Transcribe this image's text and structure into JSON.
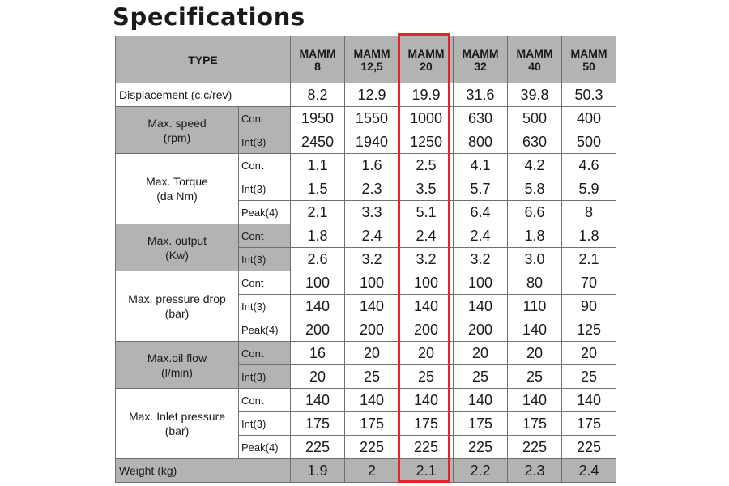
{
  "title": "Specifications",
  "highlight_color": "#e3242b",
  "header": {
    "type_label": "TYPE",
    "models": [
      {
        "line1": "MAMM",
        "line2": "8"
      },
      {
        "line1": "MAMM",
        "line2": "12,5"
      },
      {
        "line1": "MAMM",
        "line2": "20"
      },
      {
        "line1": "MAMM",
        "line2": "32"
      },
      {
        "line1": "MAMM",
        "line2": "40"
      },
      {
        "line1": "MAMM",
        "line2": "50"
      }
    ]
  },
  "highlighted_model": "MAMM 20",
  "rows": {
    "displacement": {
      "label": "Displacement (c.c/rev)",
      "values": [
        "8.2",
        "12.9",
        "19.9",
        "31.6",
        "39.8",
        "50.3"
      ]
    },
    "speed": {
      "label_line1": "Max. speed",
      "label_line2": "(rpm)",
      "cont": {
        "label": "Cont",
        "values": [
          "1950",
          "1550",
          "1000",
          "630",
          "500",
          "400"
        ]
      },
      "int": {
        "label": "Int(3)",
        "values": [
          "2450",
          "1940",
          "1250",
          "800",
          "630",
          "500"
        ]
      }
    },
    "torque": {
      "label_line1": "Max. Torque",
      "label_line2": "(da Nm)",
      "cont": {
        "label": "Cont",
        "values": [
          "1.1",
          "1.6",
          "2.5",
          "4.1",
          "4.2",
          "4.6"
        ]
      },
      "int": {
        "label": "Int(3)",
        "values": [
          "1.5",
          "2.3",
          "3.5",
          "5.7",
          "5.8",
          "5.9"
        ]
      },
      "peak": {
        "label": "Peak(4)",
        "values": [
          "2.1",
          "3.3",
          "5.1",
          "6.4",
          "6.6",
          "8"
        ]
      }
    },
    "output": {
      "label_line1": "Max. output",
      "label_line2": "(Kw)",
      "cont": {
        "label": "Cont",
        "values": [
          "1.8",
          "2.4",
          "2.4",
          "2.4",
          "1.8",
          "1.8"
        ]
      },
      "int": {
        "label": "Int(3)",
        "values": [
          "2.6",
          "3.2",
          "3.2",
          "3.2",
          "3.0",
          "2.1"
        ]
      }
    },
    "pressure_drop": {
      "label_line1": "Max. pressure drop",
      "label_line2": "(bar)",
      "cont": {
        "label": "Cont",
        "values": [
          "100",
          "100",
          "100",
          "100",
          "80",
          "70"
        ]
      },
      "int": {
        "label": "Int(3)",
        "values": [
          "140",
          "140",
          "140",
          "140",
          "110",
          "90"
        ]
      },
      "peak": {
        "label": "Peak(4)",
        "values": [
          "200",
          "200",
          "200",
          "200",
          "140",
          "125"
        ]
      }
    },
    "oil_flow": {
      "label_line1": "Max.oil  flow",
      "label_line2": "(l/min)",
      "cont": {
        "label": "Cont",
        "values": [
          "16",
          "20",
          "20",
          "20",
          "20",
          "20"
        ]
      },
      "int": {
        "label": "Int(3)",
        "values": [
          "20",
          "25",
          "25",
          "25",
          "25",
          "25"
        ]
      }
    },
    "inlet_pressure": {
      "label_line1": "Max. Inlet pressure",
      "label_line2": "(bar)",
      "cont": {
        "label": "Cont",
        "values": [
          "140",
          "140",
          "140",
          "140",
          "140",
          "140"
        ]
      },
      "int": {
        "label": "Int(3)",
        "values": [
          "175",
          "175",
          "175",
          "175",
          "175",
          "175"
        ]
      },
      "peak": {
        "label": "Peak(4)",
        "values": [
          "225",
          "225",
          "225",
          "225",
          "225",
          "225"
        ]
      }
    },
    "weight": {
      "label": "Weight  (kg)",
      "values": [
        "1.9",
        "2",
        "2.1",
        "2.2",
        "2.3",
        "2.4"
      ]
    }
  }
}
